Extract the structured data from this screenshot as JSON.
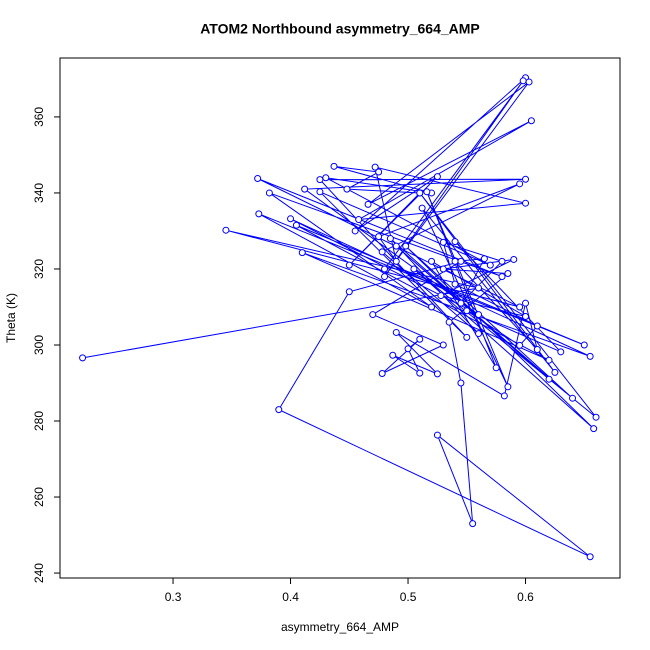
{
  "chart_data": {
    "type": "line",
    "markers": true,
    "title": "ATOM2 Northbound asymmetry_664_AMP",
    "x_label": "asymmetry_664_AMP",
    "y_label": "Theta (K)",
    "color": "#0000ff",
    "grid": false,
    "xlim": [
      0.2038,
      0.6804
    ],
    "ylim": [
      238.7,
      375.5
    ],
    "xticks": [
      0.3,
      0.4,
      0.5,
      0.6
    ],
    "yticks": [
      240,
      260,
      280,
      300,
      320,
      340,
      360
    ],
    "x": [
      0.223,
      0.56,
      0.345,
      0.595,
      0.372,
      0.58,
      0.382,
      0.52,
      0.373,
      0.65,
      0.405,
      0.62,
      0.41,
      0.655,
      0.4,
      0.56,
      0.412,
      0.6,
      0.425,
      0.55,
      0.425,
      0.57,
      0.43,
      0.52,
      0.437,
      0.475,
      0.448,
      0.51,
      0.45,
      0.525,
      0.455,
      0.6,
      0.48,
      0.598,
      0.48,
      0.603,
      0.466,
      0.605,
      0.458,
      0.6,
      0.472,
      0.49,
      0.475,
      0.595,
      0.478,
      0.56,
      0.485,
      0.62,
      0.49,
      0.64,
      0.498,
      0.658,
      0.505,
      0.66,
      0.51,
      0.625,
      0.512,
      0.585,
      0.516,
      0.575,
      0.52,
      0.6,
      0.528,
      0.59,
      0.53,
      0.585,
      0.535,
      0.545,
      0.555,
      0.525,
      0.655,
      0.39,
      0.45,
      0.545,
      0.47,
      0.53,
      0.478,
      0.51,
      0.5,
      0.51,
      0.487,
      0.525,
      0.49,
      0.582,
      0.6,
      0.61,
      0.54,
      0.565,
      0.545,
      0.58,
      0.53,
      0.54,
      0.61,
      0.595,
      0.55,
      0.63,
      0.54
    ],
    "values": [
      296.6,
      315,
      330.2,
      310,
      343.8,
      318,
      340,
      310,
      334.5,
      300,
      331.5,
      296,
      324.3,
      297,
      333.2,
      308,
      341,
      343.6,
      343.5,
      302,
      340.3,
      321,
      344,
      340,
      347,
      345.5,
      341,
      340,
      321,
      344.3,
      330,
      370.3,
      320,
      369.5,
      318,
      369.2,
      337,
      359,
      333,
      337.3,
      346.8,
      322,
      328.5,
      342.4,
      324.5,
      303,
      328,
      291,
      326,
      286,
      326,
      278,
      320,
      281,
      340,
      292.8,
      336,
      289,
      340.3,
      294,
      322,
      307.5,
      313,
      322.5,
      320,
      318.8,
      306,
      290,
      253,
      276.3,
      244.3,
      283,
      314,
      322,
      308,
      300,
      292.5,
      301.5,
      299,
      292.6,
      297.3,
      292.4,
      303.3,
      286.6,
      311,
      298.8,
      322,
      322.7,
      311,
      322,
      327,
      316,
      305,
      299.9,
      309,
      298.2,
      327.2
    ]
  }
}
